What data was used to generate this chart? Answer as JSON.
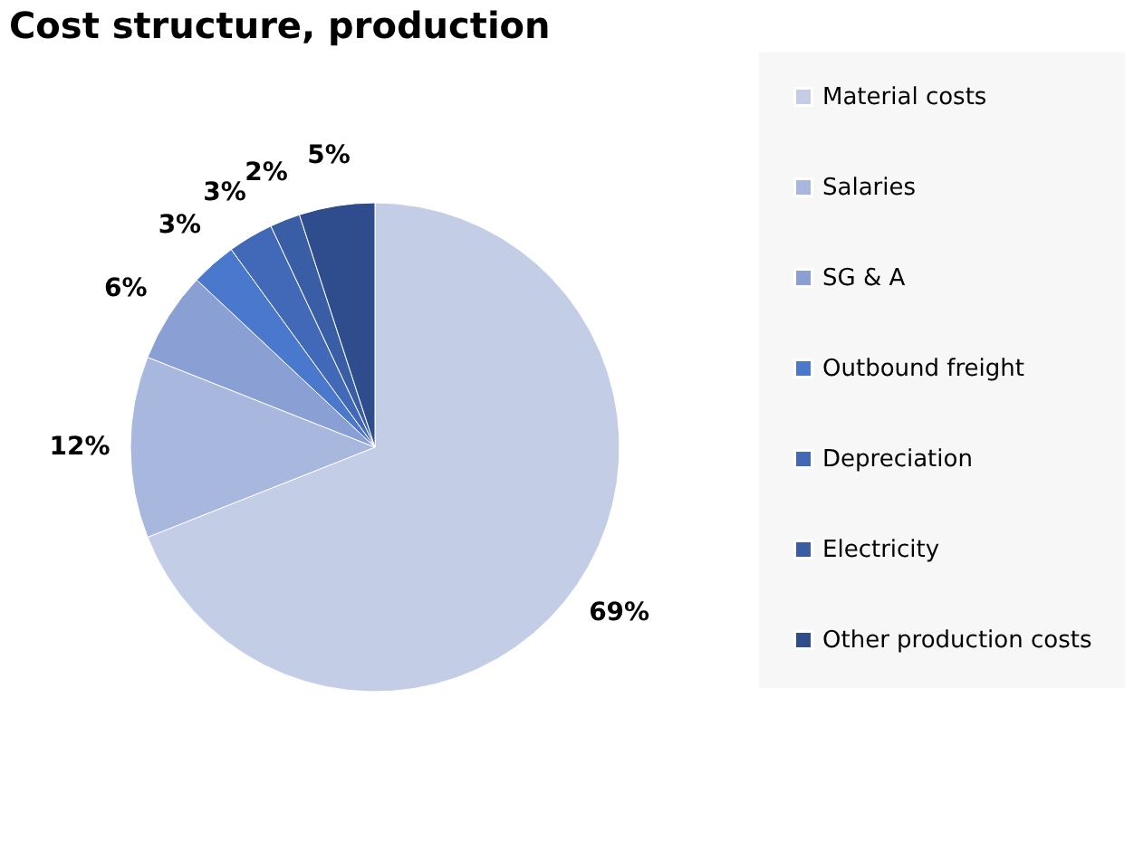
{
  "chart_data": {
    "type": "pie",
    "title": "Cost structure, production",
    "categories": [
      "Material costs",
      "Salaries",
      "SG & A",
      "Outbound freight",
      "Depreciation",
      "Electricity",
      "Other production costs"
    ],
    "values": [
      69,
      12,
      6,
      3,
      3,
      2,
      5
    ],
    "colors": [
      "#c3cde6",
      "#a8b7dd",
      "#8a9fd3",
      "#4a78cc",
      "#4169b8",
      "#3a5ea5",
      "#2f4d8c"
    ],
    "value_labels": [
      "69%",
      "12%",
      "6%",
      "3%",
      "3%",
      "2%",
      "5%"
    ],
    "legend": "right"
  }
}
